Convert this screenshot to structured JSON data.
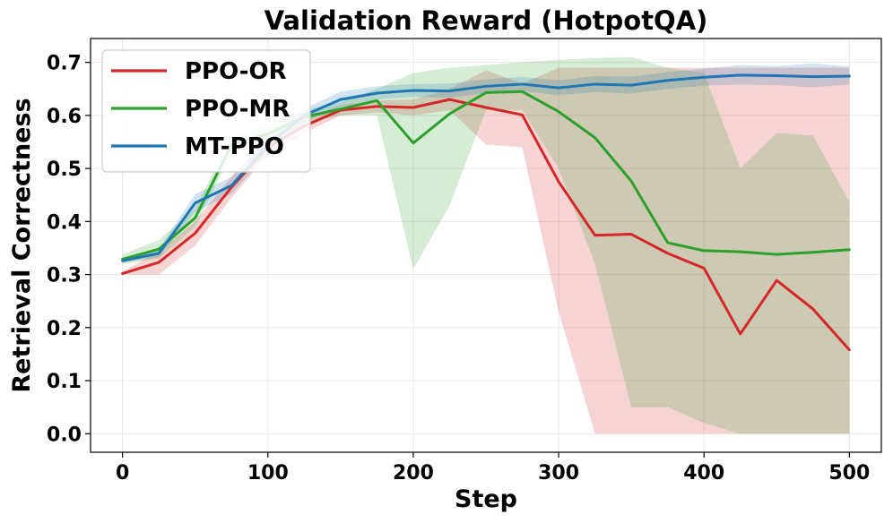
{
  "chart_data": {
    "type": "line",
    "title": "Validation Reward (HotpotQA)",
    "xlabel": "Step",
    "ylabel": "Retrieval Correctness",
    "xlim": [
      -22,
      522
    ],
    "ylim": [
      -0.035,
      0.745
    ],
    "xticks": [
      0,
      100,
      200,
      300,
      400,
      500
    ],
    "xtick_labels": [
      "0",
      "100",
      "200",
      "300",
      "400",
      "500"
    ],
    "yticks": [
      0.0,
      0.1,
      0.2,
      0.3,
      0.4,
      0.5,
      0.6,
      0.7
    ],
    "ytick_labels": [
      "0.0",
      "0.1",
      "0.2",
      "0.3",
      "0.4",
      "0.5",
      "0.6",
      "0.7"
    ],
    "grid": true,
    "legend_position": "top-left",
    "x": [
      0,
      25,
      50,
      75,
      100,
      125,
      150,
      175,
      200,
      225,
      250,
      275,
      300,
      325,
      350,
      375,
      400,
      425,
      450,
      475,
      500
    ],
    "series": [
      {
        "name": "PPO-OR",
        "color": "#d62728",
        "values": [
          0.302,
          0.323,
          0.378,
          0.465,
          0.54,
          0.58,
          0.61,
          0.617,
          0.615,
          0.63,
          0.615,
          0.601,
          0.475,
          0.374,
          0.376,
          0.34,
          0.312,
          0.188,
          0.289,
          0.235,
          0.158
        ],
        "lower": [
          0.3,
          0.3,
          0.355,
          0.445,
          0.525,
          0.567,
          0.6,
          0.606,
          0.6,
          0.61,
          0.545,
          0.54,
          0.23,
          0.0,
          0.0,
          0.0,
          0.0,
          0.0,
          0.0,
          0.0,
          0.0
        ],
        "upper": [
          0.305,
          0.345,
          0.4,
          0.485,
          0.555,
          0.593,
          0.62,
          0.628,
          0.63,
          0.65,
          0.685,
          0.66,
          0.69,
          0.69,
          0.69,
          0.69,
          0.69,
          0.69,
          0.69,
          0.69,
          0.69
        ]
      },
      {
        "name": "PPO-MR",
        "color": "#2ca02c",
        "values": [
          0.329,
          0.348,
          0.407,
          0.545,
          0.565,
          0.597,
          0.612,
          0.628,
          0.548,
          0.603,
          0.643,
          0.645,
          0.607,
          0.558,
          0.476,
          0.36,
          0.345,
          0.343,
          0.338,
          0.342,
          0.347
        ],
        "lower": [
          0.32,
          0.33,
          0.39,
          0.53,
          0.55,
          0.585,
          0.6,
          0.6,
          0.31,
          0.43,
          0.61,
          0.61,
          0.5,
          0.32,
          0.05,
          0.05,
          0.02,
          0.0,
          0.0,
          0.0,
          0.0
        ],
        "upper": [
          0.338,
          0.365,
          0.425,
          0.56,
          0.58,
          0.61,
          0.625,
          0.65,
          0.68,
          0.69,
          0.695,
          0.7,
          0.705,
          0.708,
          0.71,
          0.69,
          0.68,
          0.5,
          0.567,
          0.562,
          0.437
        ]
      },
      {
        "name": "MT-PPO",
        "color": "#1f77b4",
        "values": [
          0.326,
          0.34,
          0.435,
          0.468,
          0.545,
          0.6,
          0.63,
          0.642,
          0.647,
          0.646,
          0.655,
          0.659,
          0.652,
          0.659,
          0.657,
          0.666,
          0.672,
          0.676,
          0.675,
          0.673,
          0.674
        ],
        "lower": [
          0.322,
          0.333,
          0.418,
          0.452,
          0.53,
          0.588,
          0.617,
          0.63,
          0.635,
          0.633,
          0.642,
          0.646,
          0.638,
          0.644,
          0.641,
          0.65,
          0.656,
          0.658,
          0.657,
          0.653,
          0.658
        ],
        "upper": [
          0.33,
          0.348,
          0.452,
          0.484,
          0.562,
          0.612,
          0.645,
          0.655,
          0.659,
          0.66,
          0.668,
          0.673,
          0.666,
          0.674,
          0.673,
          0.682,
          0.688,
          0.695,
          0.693,
          0.698,
          0.692
        ]
      }
    ]
  }
}
